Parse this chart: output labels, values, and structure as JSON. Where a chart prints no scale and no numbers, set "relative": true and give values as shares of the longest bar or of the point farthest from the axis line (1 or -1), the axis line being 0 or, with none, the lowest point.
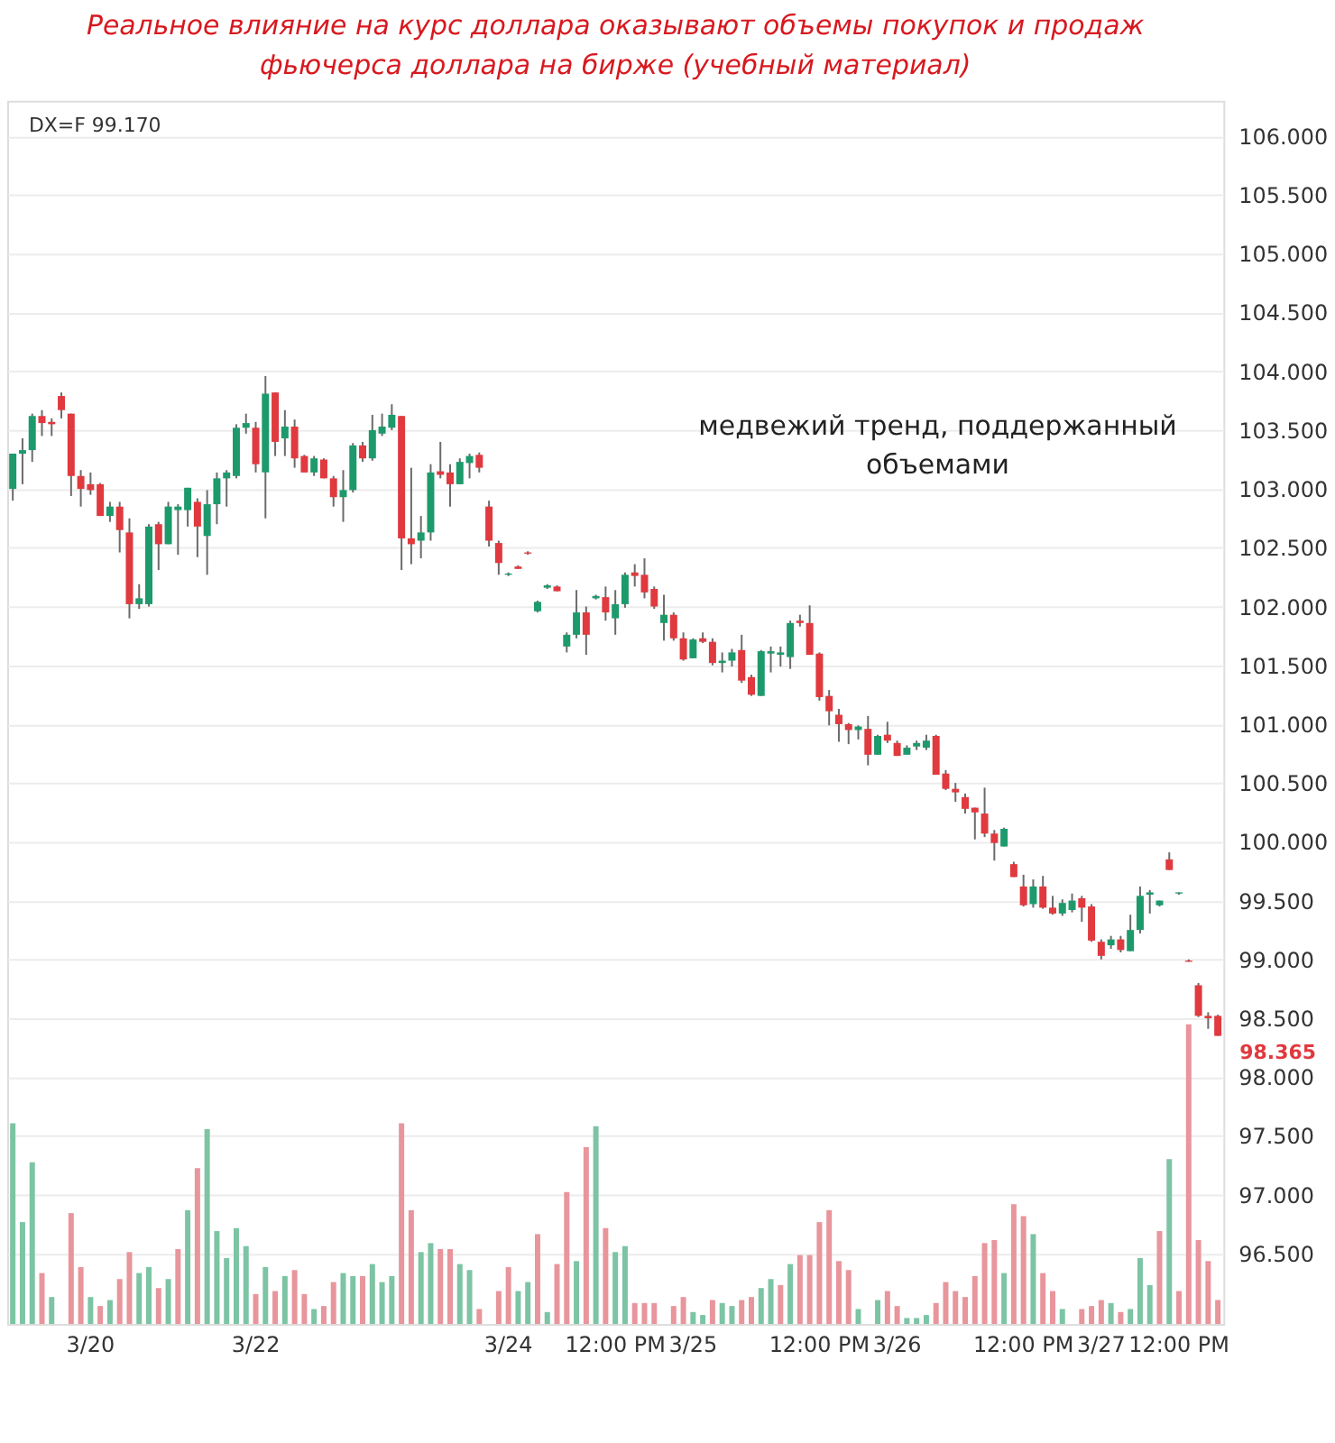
{
  "chart_data": [
    {
      "type": "candlestick",
      "title": "Реальное влияние на курс доллара оказывают объемы покупок и продаж фьючерса доллара на бирже (учебный материал)",
      "annotations": [
        "DX=F 99.170",
        "медвежий тренд, поддержанный объемами",
        "98.365"
      ],
      "categories": [
        null,
        null,
        null,
        null,
        null,
        null,
        null,
        null,
        "3/20",
        null,
        null,
        null,
        null,
        null,
        null,
        null,
        null,
        null,
        null,
        null,
        null,
        null,
        null,
        null,
        null,
        "3/22",
        null,
        null,
        null,
        null,
        null,
        null,
        null,
        null,
        null,
        null,
        null,
        null,
        null,
        null,
        null,
        null,
        null,
        null,
        null,
        null,
        null,
        null,
        null,
        null,
        null,
        "3/24",
        null,
        null,
        null,
        null,
        null,
        null,
        null,
        null,
        null,
        null,
        "12:00 PM",
        null,
        null,
        null,
        null,
        null,
        null,
        null,
        "3/25",
        null,
        null,
        null,
        null,
        null,
        null,
        null,
        null,
        null,
        null,
        null,
        null,
        "12:00 PM",
        null,
        null,
        null,
        null,
        null,
        null,
        null,
        "3/26",
        null,
        null,
        null,
        null,
        null,
        null,
        null,
        null,
        null,
        null,
        null,
        null,
        "12:00 PM",
        null,
        null,
        null,
        null,
        null,
        null,
        null,
        "3/27",
        null,
        null,
        null,
        null,
        null,
        null,
        null,
        "12:00 PM",
        null,
        null,
        null,
        null
      ],
      "ohlc": [
        [
          103.0,
          103.3,
          102.9,
          103.3
        ],
        [
          103.3,
          103.43,
          103.04,
          103.33
        ],
        [
          103.33,
          103.64,
          103.23,
          103.62
        ],
        [
          103.62,
          103.67,
          103.45,
          103.56
        ],
        [
          103.57,
          103.6,
          103.45,
          103.55
        ],
        [
          103.79,
          103.82,
          103.6,
          103.67
        ],
        [
          103.64,
          103.64,
          102.94,
          103.11
        ],
        [
          103.11,
          103.16,
          102.85,
          103.0
        ],
        [
          103.04,
          103.14,
          102.95,
          102.99
        ],
        [
          103.04,
          103.05,
          102.77,
          102.77
        ],
        [
          102.77,
          102.89,
          102.72,
          102.85
        ],
        [
          102.85,
          102.89,
          102.46,
          102.65
        ],
        [
          102.63,
          102.75,
          101.9,
          102.02
        ],
        [
          102.02,
          102.19,
          101.98,
          102.07
        ],
        [
          102.02,
          102.7,
          102.0,
          102.68
        ],
        [
          102.7,
          102.72,
          102.31,
          102.53
        ],
        [
          102.53,
          102.89,
          102.53,
          102.85
        ],
        [
          102.82,
          102.87,
          102.44,
          102.85
        ],
        [
          102.82,
          103.01,
          102.68,
          103.01
        ],
        [
          102.89,
          102.92,
          102.42,
          102.68
        ],
        [
          102.6,
          102.99,
          102.27,
          102.87
        ],
        [
          102.87,
          103.14,
          102.7,
          103.09
        ],
        [
          103.09,
          103.16,
          102.85,
          103.14
        ],
        [
          103.11,
          103.55,
          103.09,
          103.52
        ],
        [
          103.52,
          103.64,
          103.47,
          103.56
        ],
        [
          103.52,
          103.57,
          103.14,
          103.21
        ],
        [
          103.14,
          103.96,
          102.75,
          103.81
        ],
        [
          103.82,
          103.82,
          103.28,
          103.4
        ],
        [
          103.43,
          103.67,
          103.28,
          103.53
        ],
        [
          103.53,
          103.59,
          103.18,
          103.26
        ],
        [
          103.28,
          103.29,
          103.14,
          103.14
        ],
        [
          103.14,
          103.28,
          103.11,
          103.26
        ],
        [
          103.25,
          103.26,
          103.09,
          103.09
        ],
        [
          103.09,
          103.11,
          102.85,
          102.93
        ],
        [
          102.93,
          103.16,
          102.72,
          102.99
        ],
        [
          102.99,
          103.39,
          102.97,
          103.37
        ],
        [
          103.37,
          103.4,
          103.23,
          103.26
        ],
        [
          103.26,
          103.63,
          103.24,
          103.5
        ],
        [
          103.47,
          103.64,
          103.45,
          103.53
        ],
        [
          103.52,
          103.72,
          103.5,
          103.63
        ],
        [
          103.62,
          103.62,
          102.31,
          102.58
        ],
        [
          102.58,
          103.18,
          102.36,
          102.53
        ],
        [
          102.56,
          102.77,
          102.41,
          102.63
        ],
        [
          102.63,
          103.21,
          102.56,
          103.14
        ],
        [
          103.15,
          103.4,
          103.09,
          103.12
        ],
        [
          103.14,
          103.21,
          102.85,
          103.04
        ],
        [
          103.04,
          103.26,
          103.04,
          103.23
        ],
        [
          103.22,
          103.3,
          103.09,
          103.28
        ],
        [
          103.29,
          103.31,
          103.14,
          103.18
        ],
        [
          102.85,
          102.9,
          102.51,
          102.56
        ],
        [
          102.54,
          102.56,
          102.27,
          102.37
        ],
        [
          102.27,
          102.29,
          102.26,
          102.28
        ],
        [
          102.34,
          102.35,
          102.32,
          102.32
        ],
        [
          102.46,
          102.47,
          102.44,
          102.45
        ],
        [
          101.96,
          102.05,
          101.95,
          102.04
        ],
        [
          102.16,
          102.19,
          102.15,
          102.18
        ],
        [
          102.17,
          102.18,
          102.13,
          102.13
        ],
        [
          101.66,
          101.78,
          101.61,
          101.76
        ],
        [
          101.76,
          102.14,
          101.73,
          101.95
        ],
        [
          101.95,
          102.0,
          101.59,
          101.76
        ],
        [
          102.07,
          102.1,
          102.06,
          102.09
        ],
        [
          102.08,
          102.17,
          101.88,
          101.95
        ],
        [
          101.9,
          102.14,
          101.76,
          102.02
        ],
        [
          102.02,
          102.29,
          101.99,
          102.27
        ],
        [
          102.29,
          102.36,
          102.17,
          102.26
        ],
        [
          102.27,
          102.41,
          102.07,
          102.12
        ],
        [
          102.15,
          102.17,
          101.98,
          102.0
        ],
        [
          101.86,
          102.1,
          101.71,
          101.93
        ],
        [
          101.93,
          101.95,
          101.71,
          101.73
        ],
        [
          101.73,
          101.78,
          101.54,
          101.55
        ],
        [
          101.56,
          101.73,
          101.56,
          101.72
        ],
        [
          101.73,
          101.78,
          101.69,
          101.7
        ],
        [
          101.7,
          101.73,
          101.5,
          101.52
        ],
        [
          101.52,
          101.61,
          101.44,
          101.54
        ],
        [
          101.54,
          101.64,
          101.49,
          101.61
        ],
        [
          101.63,
          101.76,
          101.35,
          101.37
        ],
        [
          101.4,
          101.42,
          101.24,
          101.25
        ],
        [
          101.24,
          101.63,
          101.24,
          101.62
        ],
        [
          101.6,
          101.66,
          101.44,
          101.62
        ],
        [
          101.59,
          101.66,
          101.49,
          101.61
        ],
        [
          101.57,
          101.88,
          101.47,
          101.86
        ],
        [
          101.88,
          101.93,
          101.83,
          101.86
        ],
        [
          101.86,
          102.01,
          101.59,
          101.59
        ],
        [
          101.6,
          101.61,
          101.2,
          101.23
        ],
        [
          101.24,
          101.29,
          100.99,
          101.11
        ],
        [
          101.08,
          101.13,
          100.85,
          101.0
        ],
        [
          101.0,
          101.01,
          100.83,
          100.95
        ],
        [
          100.95,
          100.99,
          100.87,
          100.98
        ],
        [
          100.96,
          101.07,
          100.65,
          100.74
        ],
        [
          100.74,
          100.91,
          100.74,
          100.9
        ],
        [
          100.91,
          101.02,
          100.84,
          100.86
        ],
        [
          100.84,
          100.86,
          100.73,
          100.73
        ],
        [
          100.74,
          100.82,
          100.74,
          100.8
        ],
        [
          100.81,
          100.86,
          100.78,
          100.84
        ],
        [
          100.8,
          100.91,
          100.78,
          100.86
        ],
        [
          100.9,
          100.91,
          100.57,
          100.57
        ],
        [
          100.58,
          100.61,
          100.44,
          100.45
        ],
        [
          100.45,
          100.5,
          100.34,
          100.42
        ],
        [
          100.38,
          100.41,
          100.24,
          100.28
        ],
        [
          100.29,
          100.29,
          100.02,
          100.25
        ],
        [
          100.24,
          100.46,
          100.04,
          100.07
        ],
        [
          100.07,
          100.1,
          99.84,
          99.99
        ],
        [
          99.96,
          100.12,
          99.96,
          100.11
        ],
        [
          99.81,
          99.83,
          99.7,
          99.7
        ],
        [
          99.62,
          99.72,
          99.45,
          99.46
        ],
        [
          99.47,
          99.68,
          99.44,
          99.62
        ],
        [
          99.62,
          99.71,
          99.43,
          99.44
        ],
        [
          99.44,
          99.54,
          99.38,
          99.39
        ],
        [
          99.39,
          99.51,
          99.37,
          99.48
        ],
        [
          99.42,
          99.56,
          99.4,
          99.5
        ],
        [
          99.52,
          99.54,
          99.32,
          99.44
        ],
        [
          99.45,
          99.47,
          99.15,
          99.16
        ],
        [
          99.15,
          99.17,
          99.0,
          99.03
        ],
        [
          99.12,
          99.2,
          99.09,
          99.17
        ],
        [
          99.17,
          99.2,
          99.06,
          99.08
        ],
        [
          99.07,
          99.38,
          99.07,
          99.25
        ],
        [
          99.25,
          99.62,
          99.22,
          99.54
        ],
        [
          99.55,
          99.59,
          99.39,
          99.57
        ],
        [
          99.46,
          99.5,
          99.45,
          99.5
        ],
        [
          99.85,
          99.91,
          99.76,
          99.76
        ],
        [
          99.56,
          99.57,
          99.55,
          99.57
        ],
        [
          98.99,
          99.0,
          98.98,
          98.98
        ],
        [
          98.78,
          98.8,
          98.51,
          98.52
        ],
        [
          98.52,
          98.55,
          98.41,
          98.5
        ],
        [
          98.52,
          98.53,
          98.35,
          98.35
        ]
      ],
      "ylim": [
        95.9,
        106.3
      ],
      "yticks": [
        {
          "value": 96.5,
          "label": "96.500"
        },
        {
          "value": 97,
          "label": "97.000"
        },
        {
          "value": 97.5,
          "label": "97.500"
        },
        {
          "value": 98,
          "label": "98.000"
        },
        {
          "value": 98.5,
          "label": "98.500"
        },
        {
          "value": 99,
          "label": "99.000"
        },
        {
          "value": 99.5,
          "label": "99.500"
        },
        {
          "value": 100,
          "label": "100.000"
        },
        {
          "value": 100.5,
          "label": "100.500"
        },
        {
          "value": 101,
          "label": "101.000"
        },
        {
          "value": 101.5,
          "label": "101.500"
        },
        {
          "value": 102,
          "label": "102.000"
        },
        {
          "value": 102.5,
          "label": "102.500"
        },
        {
          "value": 103,
          "label": "103.000"
        },
        {
          "value": 103.5,
          "label": "103.500"
        },
        {
          "value": 104,
          "label": "104.000"
        },
        {
          "value": 104.5,
          "label": "104.500"
        },
        {
          "value": 105,
          "label": "105.000"
        },
        {
          "value": 105.5,
          "label": "105.500"
        },
        {
          "value": 106,
          "label": "106.000"
        }
      ],
      "grid": "y",
      "legend": false
    },
    {
      "type": "bar",
      "relative": true,
      "categories": [
        null,
        null,
        null,
        null,
        null,
        null,
        null,
        null,
        null,
        null,
        null,
        null,
        null,
        null,
        null,
        null,
        null,
        null,
        null,
        null,
        null,
        null,
        null,
        null,
        null,
        null,
        null,
        null,
        null,
        null,
        null,
        null,
        null,
        null,
        null,
        null,
        null,
        null,
        null,
        null,
        null,
        null,
        null,
        null,
        null,
        null,
        null,
        null,
        null,
        null,
        null,
        null,
        null,
        null,
        null,
        null,
        null,
        null,
        null,
        null,
        null,
        null,
        null,
        null,
        null,
        null,
        null,
        null,
        null,
        null,
        null,
        null,
        null,
        null,
        null,
        null,
        null,
        null,
        null,
        null,
        null,
        null,
        null,
        null,
        null,
        null,
        null,
        null,
        null,
        null,
        null,
        null,
        null,
        null,
        null,
        null,
        null,
        null,
        null,
        null,
        null,
        null,
        null,
        null,
        null,
        null,
        null,
        null,
        null,
        null,
        null,
        null,
        null,
        null,
        null,
        null,
        null,
        null,
        null,
        null,
        null,
        null,
        null,
        null,
        null
      ],
      "values": [
        0.67,
        0.34,
        0.54,
        0.17,
        0.09,
        null,
        0.37,
        0.19,
        0.09,
        0.06,
        0.08,
        0.15,
        0.24,
        0.17,
        0.19,
        0.12,
        0.15,
        0.25,
        0.38,
        0.52,
        0.65,
        0.31,
        0.22,
        0.32,
        0.26,
        0.1,
        0.19,
        0.11,
        0.16,
        0.18,
        0.1,
        0.05,
        0.06,
        0.14,
        0.17,
        0.16,
        0.16,
        0.2,
        0.14,
        0.16,
        0.67,
        0.38,
        0.24,
        0.27,
        0.25,
        0.25,
        0.2,
        0.18,
        0.05,
        null,
        0.11,
        0.19,
        0.11,
        0.14,
        0.3,
        0.04,
        0.2,
        0.44,
        0.21,
        0.59,
        0.66,
        0.32,
        0.24,
        0.26,
        0.07,
        0.07,
        0.07,
        null,
        0.06,
        0.09,
        0.04,
        0.03,
        0.08,
        0.07,
        0.06,
        0.08,
        0.09,
        0.12,
        0.15,
        0.13,
        0.2,
        0.23,
        0.23,
        0.34,
        0.38,
        0.21,
        0.18,
        0.05,
        null,
        0.08,
        0.11,
        0.06,
        0.02,
        0.02,
        0.03,
        0.07,
        0.14,
        0.11,
        0.09,
        0.16,
        0.27,
        0.28,
        0.17,
        0.4,
        0.36,
        0.3,
        0.17,
        0.11,
        0.05,
        null,
        0.05,
        0.06,
        0.08,
        0.07,
        0.04,
        0.05,
        0.22,
        0.13,
        0.31,
        0.55,
        0.11,
        1,
        0.28,
        0.21,
        0.08
      ],
      "colors": [
        "#7cc4a4",
        "#7cc4a4",
        "#7cc4a4",
        "#e8959c",
        "#7cc4a4",
        "#e8959c",
        "#e8959c",
        "#e8959c",
        "#7cc4a4",
        "#e8959c",
        "#7cc4a4",
        "#e8959c",
        "#e8959c",
        "#7cc4a4",
        "#7cc4a4",
        "#e8959c",
        "#7cc4a4",
        "#e8959c",
        "#7cc4a4",
        "#e8959c",
        "#7cc4a4",
        "#7cc4a4",
        "#7cc4a4",
        "#7cc4a4",
        "#7cc4a4",
        "#e8959c",
        "#7cc4a4",
        "#e8959c",
        "#7cc4a4",
        "#e8959c",
        "#e8959c",
        "#7cc4a4",
        "#e8959c",
        "#e8959c",
        "#7cc4a4",
        "#7cc4a4",
        "#e8959c",
        "#7cc4a4",
        "#7cc4a4",
        "#7cc4a4",
        "#e8959c",
        "#e8959c",
        "#7cc4a4",
        "#7cc4a4",
        "#e8959c",
        "#e8959c",
        "#7cc4a4",
        "#7cc4a4",
        "#e8959c",
        "#e8959c",
        "#e8959c",
        "#e8959c",
        "#7cc4a4",
        "#7cc4a4",
        "#e8959c",
        "#7cc4a4",
        "#e8959c",
        "#e8959c",
        "#7cc4a4",
        "#e8959c",
        "#7cc4a4",
        "#e8959c",
        "#7cc4a4",
        "#7cc4a4",
        "#e8959c",
        "#e8959c",
        "#e8959c",
        "#7cc4a4",
        "#e8959c",
        "#e8959c",
        "#7cc4a4",
        "#7cc4a4",
        "#e8959c",
        "#7cc4a4",
        "#7cc4a4",
        "#e8959c",
        "#e8959c",
        "#7cc4a4",
        "#7cc4a4",
        "#e8959c",
        "#7cc4a4",
        "#e8959c",
        "#e8959c",
        "#e8959c",
        "#e8959c",
        "#e8959c",
        "#e8959c",
        "#7cc4a4",
        "#e8959c",
        "#7cc4a4",
        "#e8959c",
        "#e8959c",
        "#7cc4a4",
        "#7cc4a4",
        "#7cc4a4",
        "#e8959c",
        "#e8959c",
        "#e8959c",
        "#e8959c",
        "#e8959c",
        "#e8959c",
        "#e8959c",
        "#7cc4a4",
        "#e8959c",
        "#e8959c",
        "#7cc4a4",
        "#e8959c",
        "#e8959c",
        "#7cc4a4",
        "#7cc4a4",
        "#e8959c",
        "#e8959c",
        "#e8959c",
        "#7cc4a4",
        "#e8959c",
        "#7cc4a4",
        "#7cc4a4",
        "#7cc4a4",
        "#e8959c",
        "#7cc4a4",
        "#e8959c",
        "#e8959c",
        "#e8959c",
        "#e8959c",
        "#e8959c"
      ]
    }
  ]
}
